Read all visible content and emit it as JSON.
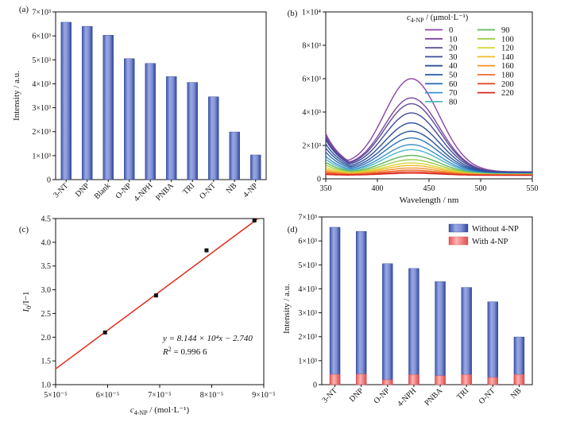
{
  "colors": {
    "bar_blue": "#5f74c2",
    "bar_blue_dark": "#2f4597",
    "bar_red": "#ee7171",
    "fit_line": "#e02b1a",
    "point": "#111111"
  },
  "chart_data": [
    {
      "panel": "(a)",
      "type": "bar",
      "ylabel": "Intensity / a.u.",
      "ylim": [
        0,
        7000
      ],
      "yticks": [
        0,
        1000,
        2000,
        3000,
        4000,
        5000,
        6000,
        7000
      ],
      "ytick_labels": [
        "0",
        "1×10³",
        "2×10³",
        "3×10³",
        "4×10³",
        "5×10³",
        "6×10³",
        "7×10³"
      ],
      "categories": [
        "3-NT",
        "DNP",
        "Blank",
        "O-NP",
        "4-NPH",
        "PNBA",
        "TRI",
        "O-NT",
        "NB",
        "4-NP"
      ],
      "values": [
        6570,
        6400,
        6030,
        5050,
        4850,
        4300,
        4060,
        3460,
        1990,
        1030
      ]
    },
    {
      "panel": "(b)",
      "type": "line",
      "xlabel": "Wavelength / nm",
      "xlim": [
        350,
        550
      ],
      "xticks": [
        350,
        400,
        450,
        500,
        550
      ],
      "ylim": [
        0,
        10000
      ],
      "yticks": [
        0,
        2000,
        4000,
        6000,
        8000,
        10000
      ],
      "ytick_labels": [
        "0",
        "2×10³",
        "4×10³",
        "6×10³",
        "8×10³",
        "1×10⁴"
      ],
      "legend": {
        "title_main": "c",
        "title_sub": "4-NP",
        "title_rest": " / (μmol·L⁻¹)",
        "placement": "top-right"
      },
      "peak_wavelength": 433,
      "series": [
        {
          "name": "0",
          "peak": 6000,
          "start": 2250,
          "end": 420,
          "color": "#8a44a2"
        },
        {
          "name": "10",
          "peak": 4850,
          "start": 2150,
          "end": 400,
          "color": "#7b469f"
        },
        {
          "name": "20",
          "peak": 4500,
          "start": 2050,
          "end": 390,
          "color": "#5e4a9a"
        },
        {
          "name": "30",
          "peak": 3950,
          "start": 1950,
          "end": 380,
          "color": "#3f4b98"
        },
        {
          "name": "40",
          "peak": 3350,
          "start": 1750,
          "end": 360,
          "color": "#2e4f99"
        },
        {
          "name": "50",
          "peak": 2850,
          "start": 1550,
          "end": 340,
          "color": "#2856a6"
        },
        {
          "name": "60",
          "peak": 2450,
          "start": 1350,
          "end": 320,
          "color": "#2f71b9"
        },
        {
          "name": "70",
          "peak": 2050,
          "start": 1150,
          "end": 300,
          "color": "#3b91c8"
        },
        {
          "name": "80",
          "peak": 1750,
          "start": 1000,
          "end": 290,
          "color": "#4fb8c8"
        },
        {
          "name": "90",
          "peak": 1400,
          "start": 850,
          "end": 280,
          "color": "#5cb85a"
        },
        {
          "name": "100",
          "peak": 1150,
          "start": 720,
          "end": 270,
          "color": "#9fcd49"
        },
        {
          "name": "120",
          "peak": 950,
          "start": 600,
          "end": 260,
          "color": "#d8d635"
        },
        {
          "name": "140",
          "peak": 800,
          "start": 500,
          "end": 250,
          "color": "#f2b82a"
        },
        {
          "name": "160",
          "peak": 650,
          "start": 420,
          "end": 240,
          "color": "#f3962d"
        },
        {
          "name": "180",
          "peak": 520,
          "start": 360,
          "end": 230,
          "color": "#ee6b2c"
        },
        {
          "name": "200",
          "peak": 420,
          "start": 300,
          "end": 220,
          "color": "#e54a26"
        },
        {
          "name": "220",
          "peak": 340,
          "start": 250,
          "end": 210,
          "color": "#d92620"
        }
      ]
    },
    {
      "panel": "(c)",
      "type": "scatter",
      "ylabel_main": "I",
      "ylabel_sub": "0",
      "ylabel_rest": "/I−1",
      "xlabel_main": "c",
      "xlabel_sub": "4-NP",
      "xlabel_rest": " / (mol·L⁻¹)",
      "xlim": [
        5e-05,
        9e-05
      ],
      "xticks": [
        5e-05,
        6e-05,
        7e-05,
        8e-05,
        9e-05
      ],
      "xtick_labels": [
        "5×10⁻⁵",
        "6×10⁻⁵",
        "7×10⁻⁵",
        "8×10⁻⁵",
        "9×10⁻⁵"
      ],
      "ylim": [
        1.0,
        4.5
      ],
      "yticks": [
        1.0,
        1.5,
        2.0,
        2.5,
        3.0,
        3.5,
        4.0,
        4.5
      ],
      "ytick_labels": [
        "1.0",
        "1.5",
        "2.0",
        "2.5",
        "3.0",
        "3.5",
        "4.0",
        "4.5"
      ],
      "points": [
        {
          "x": 5.95e-05,
          "y": 2.1
        },
        {
          "x": 6.93e-05,
          "y": 2.88
        },
        {
          "x": 7.9e-05,
          "y": 3.83
        },
        {
          "x": 8.82e-05,
          "y": 4.46
        }
      ],
      "fit": {
        "slope": 81440,
        "intercept": -2.74
      },
      "equation_text": "y = 8.144 × 10⁴x − 2.740",
      "r2_label": "R",
      "r2_sup": "2",
      "r2_value": " = 0.996 6"
    },
    {
      "panel": "(d)",
      "type": "bar",
      "ylabel": "Intensity / a.u.",
      "ylim": [
        0,
        7000
      ],
      "yticks": [
        0,
        1000,
        2000,
        3000,
        4000,
        5000,
        6000,
        7000
      ],
      "ytick_labels": [
        "0",
        "1×10³",
        "2×10³",
        "3×10³",
        "4×10³",
        "5×10³",
        "6×10³",
        "7×10³"
      ],
      "categories": [
        "3-NT",
        "DNP",
        "O-NP",
        "4-NPH",
        "PNBA",
        "TRI",
        "O-NT",
        "NB"
      ],
      "legend_placement": "top-right",
      "series": [
        {
          "name": "Without 4-NP",
          "values": [
            6570,
            6400,
            5050,
            4850,
            4300,
            4060,
            3460,
            1990
          ]
        },
        {
          "name": "With 4-NP",
          "values": [
            430,
            440,
            200,
            420,
            370,
            420,
            300,
            420
          ]
        }
      ]
    }
  ]
}
